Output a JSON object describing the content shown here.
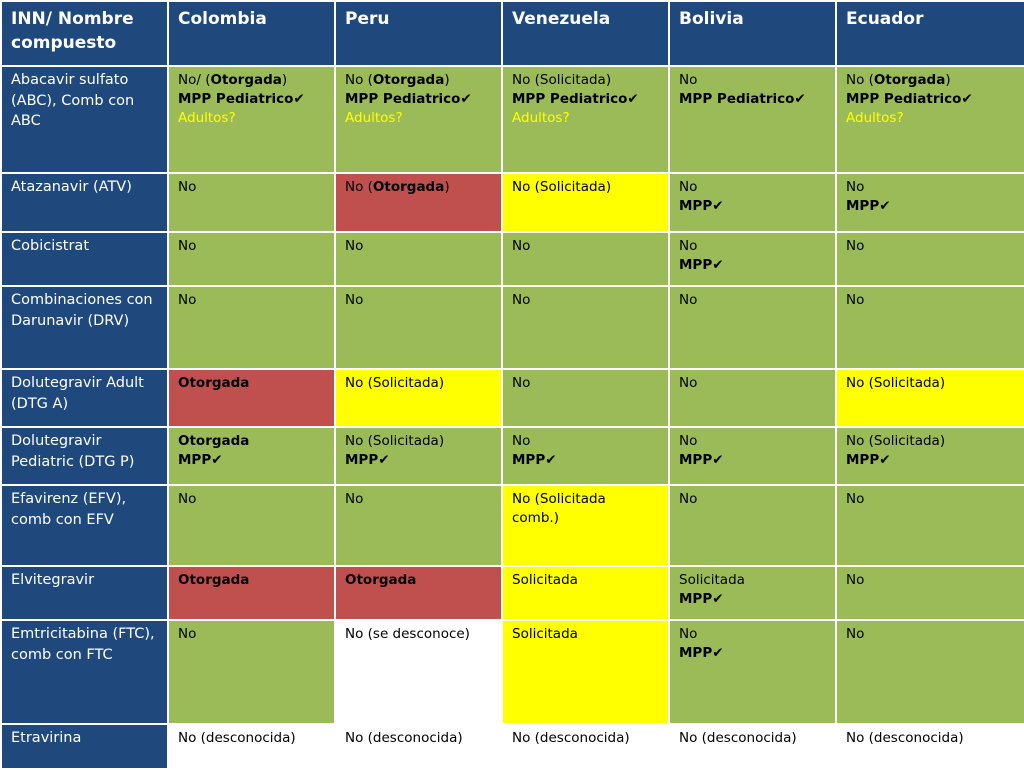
{
  "header": [
    "INN/ Nombre compuesto",
    "Colombia",
    "Peru",
    "Venezuela",
    "Bolivia",
    "Ecuador"
  ],
  "rows": [
    {
      "name": "Abacavir sulfato (ABC), Comb con ABC",
      "cells": [
        {
          "color": "green",
          "lines": [
            {
              "pre": "No/ (",
              "bold": "Otorgada",
              "post": ")"
            },
            {
              "bold": "MPP Pediatrico✔"
            },
            {
              "yellow": "Adultos?"
            }
          ]
        },
        {
          "color": "green",
          "lines": [
            {
              "pre": "No (",
              "bold": "Otorgada",
              "post": ")"
            },
            {
              "bold": "MPP Pediatrico✔"
            },
            {
              "yellow": "Adultos?"
            }
          ]
        },
        {
          "color": "green",
          "lines": [
            {
              "pre": "No (Solicitada)"
            },
            {
              "bold": "MPP Pediatrico✔"
            },
            {
              "yellow": "Adultos?"
            }
          ]
        },
        {
          "color": "green",
          "lines": [
            {
              "pre": "No"
            },
            {
              "bold": "MPP Pediatrico✔"
            }
          ]
        },
        {
          "color": "green",
          "lines": [
            {
              "pre": "No (",
              "bold": "Otorgada",
              "post": ")"
            },
            {
              "bold": "MPP Pediatrico✔"
            },
            {
              "yellow": "Adultos?"
            }
          ]
        }
      ]
    },
    {
      "name": "Atazanavir (ATV)",
      "cells": [
        {
          "color": "green",
          "lines": [
            {
              "pre": "No"
            }
          ]
        },
        {
          "color": "red",
          "lines": [
            {
              "pre": "No (",
              "bold": "Otorgada",
              "post": ")"
            }
          ]
        },
        {
          "color": "yellow",
          "lines": [
            {
              "pre": "No (Solicitada)"
            }
          ]
        },
        {
          "color": "green",
          "lines": [
            {
              "pre": "No"
            },
            {
              "bold": "MPP✔"
            }
          ]
        },
        {
          "color": "green",
          "lines": [
            {
              "pre": "No"
            },
            {
              "bold": "MPP✔"
            }
          ]
        }
      ]
    },
    {
      "name": "Cobicistrat",
      "cells": [
        {
          "color": "green",
          "lines": [
            {
              "pre": "No"
            }
          ]
        },
        {
          "color": "green",
          "lines": [
            {
              "pre": "No"
            }
          ]
        },
        {
          "color": "green",
          "lines": [
            {
              "pre": "No"
            }
          ]
        },
        {
          "color": "green",
          "lines": [
            {
              "pre": "No"
            },
            {
              "bold": "MPP✔"
            }
          ]
        },
        {
          "color": "green",
          "lines": [
            {
              "pre": "No"
            }
          ]
        }
      ]
    },
    {
      "name": "Combinaciones con Darunavir (DRV)",
      "cells": [
        {
          "color": "green",
          "lines": [
            {
              "pre": "No"
            }
          ]
        },
        {
          "color": "green",
          "lines": [
            {
              "pre": "No"
            }
          ]
        },
        {
          "color": "green",
          "lines": [
            {
              "pre": "No"
            }
          ]
        },
        {
          "color": "green",
          "lines": [
            {
              "pre": "No"
            }
          ]
        },
        {
          "color": "green",
          "lines": [
            {
              "pre": "No"
            }
          ]
        }
      ]
    },
    {
      "name": "Dolutegravir Adult (DTG A)",
      "cells": [
        {
          "color": "red",
          "lines": [
            {
              "bold": "Otorgada"
            }
          ]
        },
        {
          "color": "yellow",
          "lines": [
            {
              "pre": "No (Solicitada)"
            }
          ]
        },
        {
          "color": "green",
          "lines": [
            {
              "pre": "No"
            }
          ]
        },
        {
          "color": "green",
          "lines": [
            {
              "pre": "No"
            }
          ]
        },
        {
          "color": "yellow",
          "lines": [
            {
              "pre": "No (Solicitada)"
            }
          ]
        }
      ]
    },
    {
      "name": "Dolutegravir Pediatric (DTG P)",
      "cells": [
        {
          "color": "green",
          "lines": [
            {
              "bold": "Otorgada"
            },
            {
              "bold": "MPP✔"
            }
          ]
        },
        {
          "color": "green",
          "lines": [
            {
              "pre": "No (Solicitada)"
            },
            {
              "bold": "MPP✔"
            }
          ]
        },
        {
          "color": "green",
          "lines": [
            {
              "pre": "No"
            },
            {
              "bold": "MPP✔"
            }
          ]
        },
        {
          "color": "green",
          "lines": [
            {
              "pre": "No"
            },
            {
              "bold": "MPP✔"
            }
          ]
        },
        {
          "color": "green",
          "lines": [
            {
              "pre": "No (Solicitada)"
            },
            {
              "bold": "MPP✔"
            }
          ]
        }
      ]
    },
    {
      "name": "Efavirenz (EFV), comb con EFV",
      "cells": [
        {
          "color": "green",
          "lines": [
            {
              "pre": "No"
            }
          ]
        },
        {
          "color": "green",
          "lines": [
            {
              "pre": "No"
            }
          ]
        },
        {
          "color": "yellow",
          "lines": [
            {
              "pre": "No (Solicitada"
            },
            {
              "pre": "comb.)"
            }
          ]
        },
        {
          "color": "green",
          "lines": [
            {
              "pre": "No"
            }
          ]
        },
        {
          "color": "green",
          "lines": [
            {
              "pre": "No"
            }
          ]
        }
      ]
    },
    {
      "name": "Elvitegravir",
      "cells": [
        {
          "color": "red",
          "lines": [
            {
              "bold": "Otorgada"
            }
          ]
        },
        {
          "color": "red",
          "lines": [
            {
              "bold": "Otorgada"
            }
          ]
        },
        {
          "color": "yellow",
          "lines": [
            {
              "pre": "Solicitada"
            }
          ]
        },
        {
          "color": "green",
          "lines": [
            {
              "pre": "Solicitada"
            },
            {
              "bold": "MPP✔"
            }
          ]
        },
        {
          "color": "green",
          "lines": [
            {
              "pre": "No"
            }
          ]
        }
      ]
    },
    {
      "name": "Emtricitabina (FTC),  comb con FTC",
      "cells": [
        {
          "color": "green",
          "lines": [
            {
              "pre": "No"
            }
          ]
        },
        {
          "color": "white",
          "lines": [
            {
              "pre": "No (se desconoce)"
            }
          ]
        },
        {
          "color": "yellow",
          "lines": [
            {
              "pre": "Solicitada"
            }
          ]
        },
        {
          "color": "green",
          "lines": [
            {
              "pre": "No"
            },
            {
              "bold": "MPP✔"
            }
          ]
        },
        {
          "color": "green",
          "lines": [
            {
              "pre": "No"
            }
          ]
        }
      ]
    },
    {
      "name": "Etravirina",
      "cells": [
        {
          "color": "white",
          "lines": [
            {
              "pre": "No (desconocida)"
            }
          ]
        },
        {
          "color": "white",
          "lines": [
            {
              "pre": "No (desconocida)"
            }
          ]
        },
        {
          "color": "white",
          "lines": [
            {
              "pre": "No (desconocida)"
            }
          ]
        },
        {
          "color": "white",
          "lines": [
            {
              "pre": "No (desconocida)"
            }
          ]
        },
        {
          "color": "white",
          "lines": [
            {
              "pre": "No (desconocida)"
            }
          ]
        }
      ]
    }
  ]
}
